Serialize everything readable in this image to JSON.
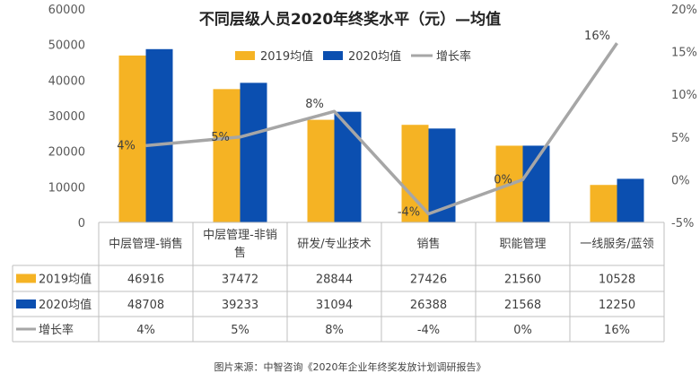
{
  "chart_data": {
    "type": "bar",
    "title": "不同层级人员2020年终奖水平（元）—均值",
    "categories": [
      "中层管理-销售",
      "中层管理-非销售",
      "研发/专业技术",
      "销售",
      "职能管理",
      "一线服务/蓝领"
    ],
    "series": [
      {
        "name": "2019均值",
        "type": "bar",
        "axis": "left",
        "color": "#F5B324",
        "values": [
          46916,
          37472,
          28844,
          27426,
          21560,
          10528
        ],
        "labels": [
          "46916",
          "37472",
          "28844",
          "27426",
          "21560",
          "10528"
        ]
      },
      {
        "name": "2020均值",
        "type": "bar",
        "axis": "left",
        "color": "#0B4FB0",
        "values": [
          48708,
          39233,
          31094,
          26388,
          21568,
          12250
        ],
        "labels": [
          "48708",
          "39233",
          "31094",
          "26388",
          "21568",
          "12250"
        ]
      },
      {
        "name": "增长率",
        "type": "line",
        "axis": "right",
        "color": "#A6A6A6",
        "values": [
          4,
          5,
          8,
          -4,
          0,
          16
        ],
        "labels": [
          "4%",
          "5%",
          "8%",
          "-4%",
          "0%",
          "16%"
        ]
      }
    ],
    "y_left": {
      "min": 0,
      "max": 60000,
      "ticks": [
        "0",
        "10000",
        "20000",
        "30000",
        "40000",
        "50000",
        "60000"
      ]
    },
    "y_right": {
      "min": -5,
      "max": 20,
      "ticks": [
        "-5%",
        "0%",
        "5%",
        "10%",
        "15%",
        "20%"
      ]
    },
    "grid": false,
    "legend_position": "top",
    "data_table": true
  },
  "source_note": "图片来源：中智咨询《2020年企业年终奖发放计划调研报告》"
}
